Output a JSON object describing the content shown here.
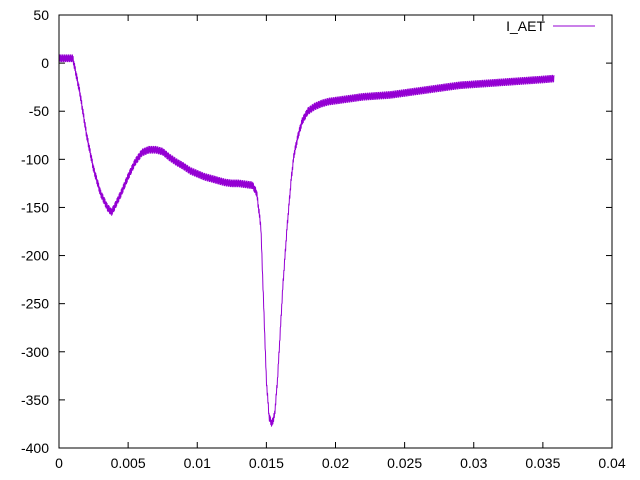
{
  "chart_data": {
    "type": "line",
    "title": "",
    "xlabel": "",
    "ylabel": "",
    "xlim": [
      0,
      0.04
    ],
    "ylim": [
      -400,
      50
    ],
    "x_ticks": [
      0,
      0.005,
      0.01,
      0.015,
      0.02,
      0.025,
      0.03,
      0.035,
      0.04
    ],
    "x_tick_labels": [
      "0",
      "0.005",
      "0.01",
      "0.015",
      "0.02",
      "0.025",
      "0.03",
      "0.035",
      "0.04"
    ],
    "y_ticks": [
      50,
      0,
      -50,
      -100,
      -150,
      -200,
      -250,
      -300,
      -350,
      -400
    ],
    "y_tick_labels": [
      "50",
      "0",
      "-50",
      "-100",
      "-150",
      "-200",
      "-250",
      "-300",
      "-350",
      "-400"
    ],
    "grid": false,
    "legend_position": "top-right",
    "series": [
      {
        "name": "I_AET",
        "color": "#9400d3",
        "noise_amplitude": 7,
        "x": [
          0,
          0.0005,
          0.001,
          0.0015,
          0.002,
          0.0025,
          0.003,
          0.0035,
          0.0038,
          0.004,
          0.0045,
          0.005,
          0.0055,
          0.006,
          0.0065,
          0.007,
          0.0075,
          0.008,
          0.0085,
          0.009,
          0.0095,
          0.01,
          0.0105,
          0.011,
          0.0115,
          0.012,
          0.0125,
          0.013,
          0.0135,
          0.014,
          0.0143,
          0.0146,
          0.0148,
          0.015,
          0.0152,
          0.0154,
          0.0156,
          0.0158,
          0.016,
          0.0162,
          0.0165,
          0.0168,
          0.017,
          0.0173,
          0.0176,
          0.018,
          0.0185,
          0.019,
          0.0195,
          0.02,
          0.021,
          0.022,
          0.023,
          0.024,
          0.025,
          0.026,
          0.027,
          0.028,
          0.029,
          0.03,
          0.031,
          0.032,
          0.033,
          0.034,
          0.035,
          0.0358
        ],
        "y": [
          5,
          5,
          5,
          -30,
          -75,
          -110,
          -135,
          -150,
          -155,
          -150,
          -135,
          -118,
          -103,
          -93,
          -90,
          -90,
          -92,
          -98,
          -103,
          -107,
          -112,
          -115,
          -118,
          -120,
          -122,
          -124,
          -125,
          -125,
          -126,
          -127,
          -135,
          -170,
          -250,
          -330,
          -368,
          -375,
          -365,
          -330,
          -280,
          -230,
          -170,
          -120,
          -95,
          -75,
          -60,
          -50,
          -45,
          -42,
          -40,
          -39,
          -37,
          -35,
          -34,
          -33,
          -31,
          -29,
          -27,
          -25,
          -23,
          -22,
          -21,
          -20,
          -19,
          -18,
          -17,
          -16
        ]
      }
    ]
  }
}
